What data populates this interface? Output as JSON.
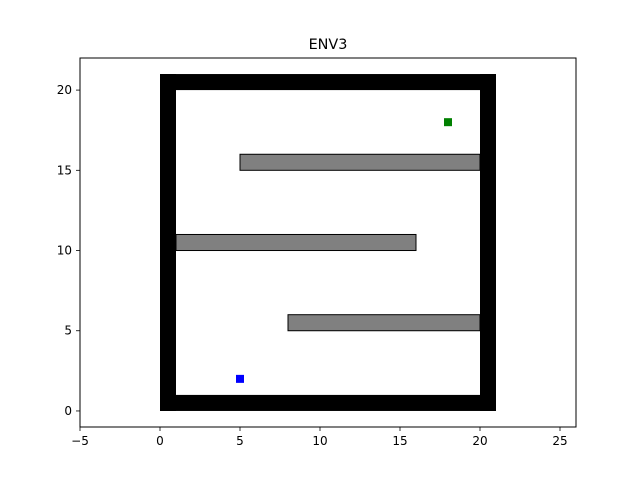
{
  "chart_data": {
    "type": "scatter",
    "title": "ENV3",
    "xlabel": "",
    "ylabel": "",
    "xlim": [
      -5,
      26
    ],
    "ylim": [
      -1,
      22
    ],
    "x_ticks": [
      -5,
      0,
      5,
      10,
      15,
      20,
      25
    ],
    "y_ticks": [
      0,
      5,
      10,
      15,
      20
    ],
    "x_tick_labels": [
      "−5",
      "0",
      "5",
      "10",
      "15",
      "20",
      "25"
    ],
    "y_tick_labels": [
      "0",
      "5",
      "10",
      "15",
      "20"
    ],
    "grid": false,
    "legend": "none",
    "outer_walls": [
      {
        "x": 0,
        "y": 0,
        "width": 1,
        "height": 21
      },
      {
        "x": 20,
        "y": 0,
        "width": 1,
        "height": 21
      },
      {
        "x": 0,
        "y": 0,
        "width": 21,
        "height": 1
      },
      {
        "x": 0,
        "y": 20,
        "width": 21,
        "height": 1
      }
    ],
    "inner_obstacles": [
      {
        "x": 5,
        "y": 15,
        "width": 15,
        "height": 1
      },
      {
        "x": 1,
        "y": 10,
        "width": 15,
        "height": 1
      },
      {
        "x": 8,
        "y": 5,
        "width": 12,
        "height": 1
      }
    ],
    "points": [
      {
        "role": "start",
        "x": 5,
        "y": 2,
        "color": "#0000ff"
      },
      {
        "role": "goal",
        "x": 18,
        "y": 18,
        "color": "#008000"
      }
    ],
    "colors": {
      "wall": "#000000",
      "obstacle": "#808080",
      "obstacle_edge": "#000000"
    }
  }
}
